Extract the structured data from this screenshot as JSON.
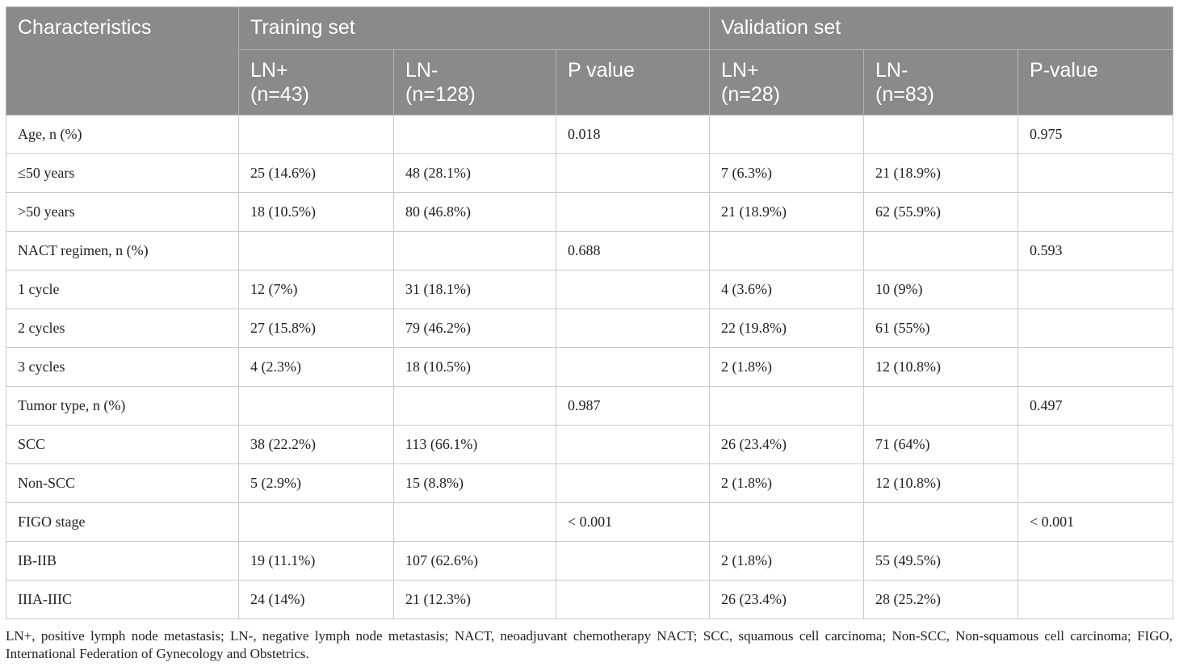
{
  "header": {
    "characteristics": "Characteristics",
    "training_set": "Training set",
    "validation_set": "Validation set",
    "training_cols": [
      {
        "line1": "LN+",
        "line2": "(n=43)"
      },
      {
        "line1": "LN-",
        "line2": "(n=128)"
      },
      {
        "line1": "P value",
        "line2": ""
      }
    ],
    "validation_cols": [
      {
        "line1": "LN+",
        "line2": "(n=28)"
      },
      {
        "line1": "LN-",
        "line2": "(n=83)"
      },
      {
        "line1": "P-value",
        "line2": ""
      }
    ]
  },
  "rows": [
    [
      "Age, n (%)",
      "",
      "",
      "0.018",
      "",
      "",
      "0.975"
    ],
    [
      "≤50 years",
      "25 (14.6%)",
      "48 (28.1%)",
      "",
      "7 (6.3%)",
      "21 (18.9%)",
      ""
    ],
    [
      ">50 years",
      "18 (10.5%)",
      "80 (46.8%)",
      "",
      "21 (18.9%)",
      "62 (55.9%)",
      ""
    ],
    [
      "NACT regimen, n (%)",
      "",
      "",
      "0.688",
      "",
      "",
      "0.593"
    ],
    [
      "1 cycle",
      "12 (7%)",
      "31 (18.1%)",
      "",
      "4 (3.6%)",
      "10 (9%)",
      ""
    ],
    [
      "2 cycles",
      "27 (15.8%)",
      "79 (46.2%)",
      "",
      "22 (19.8%)",
      "61 (55%)",
      ""
    ],
    [
      "3 cycles",
      "4 (2.3%)",
      "18 (10.5%)",
      "",
      "2 (1.8%)",
      "12 (10.8%)",
      ""
    ],
    [
      "Tumor type, n (%)",
      "",
      "",
      "0.987",
      "",
      "",
      "0.497"
    ],
    [
      "SCC",
      "38 (22.2%)",
      "113 (66.1%)",
      "",
      "26 (23.4%)",
      "71 (64%)",
      ""
    ],
    [
      "Non-SCC",
      "5 (2.9%)",
      "15 (8.8%)",
      "",
      "2 (1.8%)",
      "12 (10.8%)",
      ""
    ],
    [
      "FIGO stage",
      "",
      "",
      "< 0.001",
      "",
      "",
      "< 0.001"
    ],
    [
      "IB-IIB",
      "19 (11.1%)",
      "107 (62.6%)",
      "",
      "2 (1.8%)",
      "55 (49.5%)",
      ""
    ],
    [
      "IIIA-IIIC",
      "24 (14%)",
      "21 (12.3%)",
      "",
      "26 (23.4%)",
      "28 (25.2%)",
      ""
    ]
  ],
  "footnote": "LN+, positive lymph node metastasis; LN-, negative lymph node metastasis; NACT, neoadjuvant chemotherapy NACT; SCC, squamous cell carcinoma; Non-SCC, Non-squamous cell carcinoma; FIGO, International Federation of Gynecology and Obstetrics.",
  "colors": {
    "header_bg": "#8a8a8a",
    "header_text": "#ffffff",
    "border": "#c9c9c9"
  }
}
